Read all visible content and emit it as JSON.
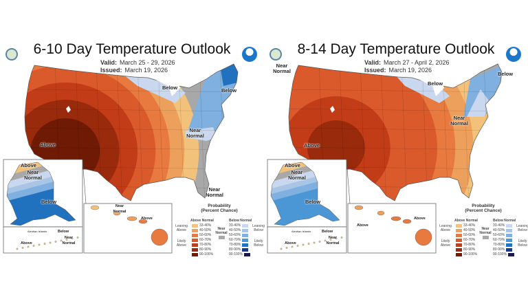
{
  "panels": [
    {
      "title": "6-10 Day Temperature Outlook",
      "valid_label": "Valid:",
      "valid": "March 25 - 29, 2026",
      "issued_label": "Issued:",
      "issued": "March 19, 2026",
      "labels": {
        "conus_above": "Above",
        "conus_below_lakes": "Below",
        "conus_below_ne": "Below",
        "conus_near": "Near Normal",
        "conus_near_fl": "Near Normal",
        "ak_above": "Above",
        "ak_near": "Near Normal",
        "ak_below": "Below",
        "aleut_above": "Above",
        "aleut_islands": "Aleutian Islands",
        "aleut_below": "Below",
        "aleut_near": "Near Normal",
        "hi_near": "Near Normal",
        "hi_above": "Above"
      }
    },
    {
      "title": "8-14 Day Temperature Outlook",
      "valid_label": "Valid:",
      "valid": "March 27 - April 2, 2026",
      "issued_label": "Issued:",
      "issued": "March 19, 2026",
      "labels": {
        "conus_above": "Above",
        "conus_below_lakes": "Below",
        "conus_below_ne": "Below",
        "conus_near": "Near Normal",
        "conus_near_nw": "Near Normal",
        "ak_above": "Above",
        "ak_near": "Near Normal",
        "ak_below": "Below",
        "aleut_above": "Above",
        "aleut_islands": "Aleutian Islands",
        "aleut_below": "Below",
        "aleut_near": "Near Normal",
        "hi_above_w": "Above",
        "hi_above": "Above"
      }
    }
  ],
  "legend": {
    "title": "Probability",
    "subtitle": "(Percent Chance)",
    "above_header": "Above Normal",
    "below_header": "Below Normal",
    "near_label": "Near Normal",
    "leaning_above": "Leaning Above",
    "likely_above": "Likely Above",
    "leaning_below": "Leaning Below",
    "likely_below": "Likely Below",
    "ranges": [
      "33-40%",
      "40-50%",
      "50-60%",
      "60-70%",
      "70-80%",
      "80-90%",
      "90-100%"
    ],
    "above_colors": [
      "#f2c27b",
      "#eda05c",
      "#e8793f",
      "#da5a2c",
      "#c23d17",
      "#9a2a0c",
      "#6e1a05"
    ],
    "below_colors": [
      "#c9d8ee",
      "#a9c5e6",
      "#7fb0df",
      "#4b97d6",
      "#2072bf",
      "#1a3b8a",
      "#1a1650"
    ],
    "near_color": "#a8a8a8"
  }
}
